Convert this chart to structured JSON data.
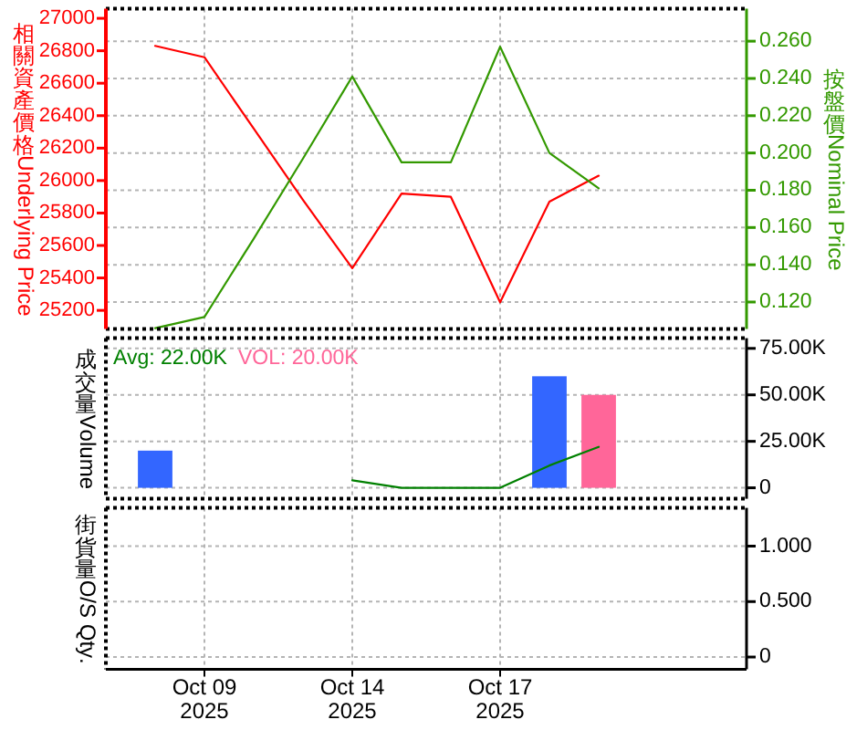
{
  "chart_data": [
    {
      "type": "line",
      "categories": [
        null,
        null,
        null,
        null,
        null,
        null,
        null,
        null,
        null,
        null,
        null,
        null,
        null,
        null
      ],
      "ylabel": "相關資產價格Underlying Price",
      "y2label": "按盤價Nominal Price",
      "ylim": [
        25085,
        27060
      ],
      "yticks": [
        25200,
        25400,
        25600,
        25800,
        26000,
        26200,
        26400,
        26600,
        26800,
        27000
      ],
      "y2lim": [
        0.1055,
        0.2775
      ],
      "y2ticks": [
        {
          "value": 0.12,
          "label": "0.120"
        },
        {
          "value": 0.14,
          "label": "0.140"
        },
        {
          "value": 0.16,
          "label": "0.160"
        },
        {
          "value": 0.18,
          "label": "0.180"
        },
        {
          "value": 0.2,
          "label": "0.200"
        },
        {
          "value": 0.22,
          "label": "0.220"
        },
        {
          "value": 0.24,
          "label": "0.240"
        },
        {
          "value": 0.26,
          "label": "0.260"
        }
      ],
      "series": [
        {
          "color": "#ff0000",
          "values": [
            null,
            26830,
            26760,
            26320,
            25880,
            25460,
            25920,
            25900,
            25250,
            25870,
            26030,
            null,
            null,
            null
          ]
        },
        {
          "color": "#339900",
          "axis": "y2",
          "values": [
            null,
            0.106,
            0.112,
            0.154,
            0.197,
            0.241,
            0.195,
            0.195,
            0.257,
            0.2,
            0.181,
            null,
            null,
            null
          ]
        }
      ],
      "grid": true,
      "tick_labels": "y"
    },
    {
      "type": "bar",
      "categories": [
        null,
        null,
        null,
        null,
        null,
        null,
        null,
        null,
        null,
        null,
        null,
        null,
        null,
        null
      ],
      "ylabel": "成交量Volume",
      "ylim": [
        -5900,
        80500
      ],
      "yticks": [
        0,
        {
          "value": 25000,
          "label": "25.00K"
        },
        {
          "value": 50000,
          "label": "50.00K"
        },
        {
          "value": 75000,
          "label": "75.00K"
        }
      ],
      "series": [
        {
          "color": "#3366ff",
          "values": [
            null,
            20000,
            null,
            null,
            null,
            null,
            null,
            null,
            null,
            60000,
            null,
            null,
            null,
            null
          ]
        },
        {
          "name": "Avg: 22.00K",
          "type": "line",
          "color": "#008000",
          "values": [
            null,
            null,
            null,
            null,
            null,
            4000,
            0,
            0,
            0,
            12000,
            22000,
            null,
            null,
            null
          ]
        },
        {
          "name": "VOL: 20.00K",
          "color": "#ff6699",
          "values": [
            null,
            null,
            null,
            null,
            null,
            null,
            null,
            null,
            null,
            null,
            50000,
            null,
            null,
            null
          ]
        }
      ],
      "legend": "top left",
      "grid": true,
      "tick_labels": "y"
    },
    {
      "type": "line",
      "categories": [
        null,
        null,
        "Oct 09\n2025",
        null,
        null,
        "Oct 14\n2025",
        null,
        null,
        "Oct 17\n2025",
        null,
        null,
        null,
        null,
        null
      ],
      "ylabel": "街貨量O/S Qty.",
      "ylim": [
        -0.11,
        1.345
      ],
      "yticks": [
        0,
        {
          "value": 0.5,
          "label": "0.500"
        },
        {
          "value": 1,
          "label": "1.000"
        }
      ],
      "grid": true
    }
  ]
}
